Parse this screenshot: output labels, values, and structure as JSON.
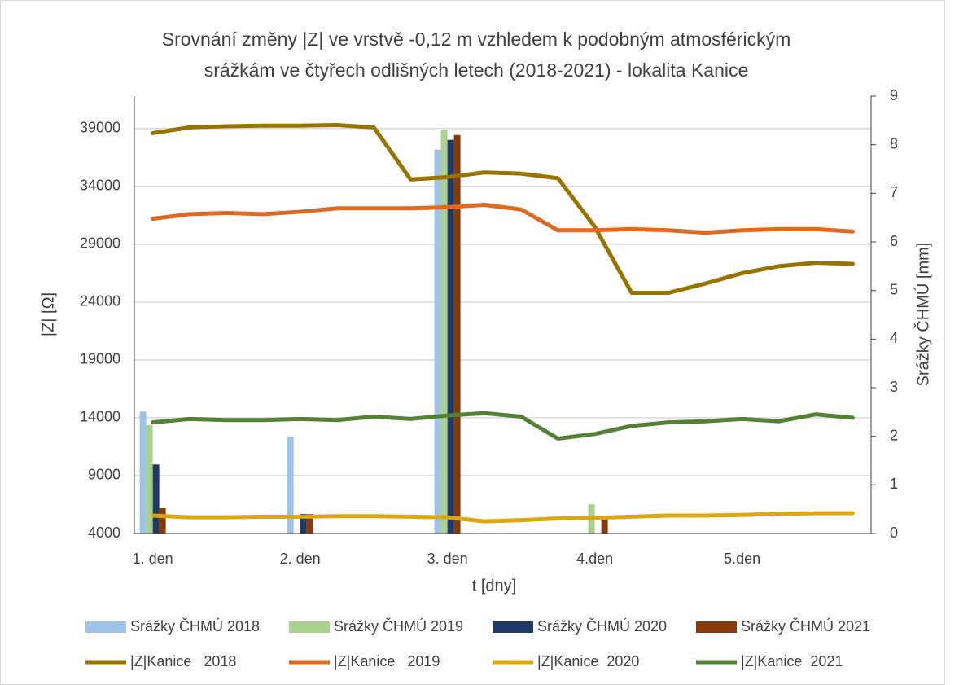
{
  "chart_data": {
    "type": "combo",
    "title": [
      "Srovnání změny |Z| ve vrstvě -0,12 m vzhledem k podobným atmosférickým",
      "srážkám ve čtyřech odlišných letech (2018-2021) - lokalita Kanice"
    ],
    "ylabel": "|Z| [Ω]",
    "y2label": "Srážky ČHMÚ [mm]",
    "xlabel": "t [dny]",
    "categories": [
      "1. den",
      null,
      null,
      null,
      "2. den",
      null,
      null,
      null,
      "3. den",
      null,
      null,
      null,
      "4.den",
      null,
      null,
      null,
      "5.den",
      null,
      null,
      null
    ],
    "ylim": [
      4000,
      41800
    ],
    "yticks": [
      4000,
      9000,
      14000,
      19000,
      24000,
      29000,
      34000,
      39000
    ],
    "y2lim": [
      0,
      9
    ],
    "y2ticks": [
      0,
      1,
      2,
      3,
      4,
      5,
      6,
      7,
      8,
      9
    ],
    "grid": true,
    "series": [
      {
        "name": "Srážky ČHMÚ 2018",
        "type": "bar",
        "axis": "y2",
        "color": "#9dc3e6",
        "values": [
          2.51,
          null,
          null,
          null,
          2.0,
          null,
          null,
          null,
          7.9,
          null,
          null,
          null,
          0,
          null,
          null,
          null,
          null,
          null,
          null,
          null
        ]
      },
      {
        "name": "Srážky ČHMÚ 2019",
        "type": "bar",
        "axis": "y2",
        "color": "#a9d18e",
        "values": [
          2.23,
          null,
          null,
          null,
          0,
          null,
          null,
          null,
          8.3,
          null,
          null,
          null,
          0.6,
          null,
          null,
          null,
          null,
          null,
          null,
          null
        ]
      },
      {
        "name": "Srážky ČHMÚ 2020",
        "type": "bar",
        "axis": "y2",
        "color": "#203864",
        "values": [
          1.42,
          null,
          null,
          null,
          0.4,
          null,
          null,
          null,
          8.1,
          null,
          null,
          null,
          0,
          null,
          null,
          null,
          null,
          null,
          null,
          null
        ]
      },
      {
        "name": "Srážky ČHMÚ 2021",
        "type": "bar",
        "axis": "y2",
        "color": "#843c0c",
        "values": [
          0.52,
          null,
          null,
          null,
          0.4,
          null,
          null,
          null,
          8.2,
          null,
          null,
          null,
          0.33,
          null,
          null,
          null,
          null,
          null,
          null,
          null
        ]
      },
      {
        "name": "|Z|Kanice   2018",
        "type": "line",
        "color": "#997300",
        "values": [
          38600,
          39100,
          39200,
          39250,
          39250,
          39300,
          39100,
          34600,
          34800,
          35200,
          35100,
          34700,
          30500,
          24800,
          24800,
          25600,
          26500,
          27100,
          27400,
          27300
        ]
      },
      {
        "name": "|Z|Kanice   2019",
        "type": "line",
        "color": "#dd6a22",
        "values": [
          31200,
          31600,
          31700,
          31600,
          31800,
          32100,
          32100,
          32100,
          32200,
          32400,
          32000,
          30200,
          30200,
          30300,
          30200,
          30000,
          30200,
          30300,
          30300,
          30100
        ]
      },
      {
        "name": "|Z|Kanice  2020",
        "type": "line",
        "color": "#dba712",
        "values": [
          5550,
          5400,
          5400,
          5450,
          5450,
          5500,
          5500,
          5450,
          5400,
          5050,
          5150,
          5300,
          5350,
          5450,
          5550,
          5550,
          5600,
          5700,
          5750,
          5750
        ]
      },
      {
        "name": "|Z|Kanice  2021",
        "type": "line",
        "color": "#548235",
        "values": [
          13600,
          13900,
          13800,
          13800,
          13900,
          13800,
          14100,
          13900,
          14200,
          14400,
          14100,
          12200,
          12600,
          13300,
          13600,
          13700,
          13900,
          13700,
          14300,
          14000
        ]
      }
    ]
  }
}
